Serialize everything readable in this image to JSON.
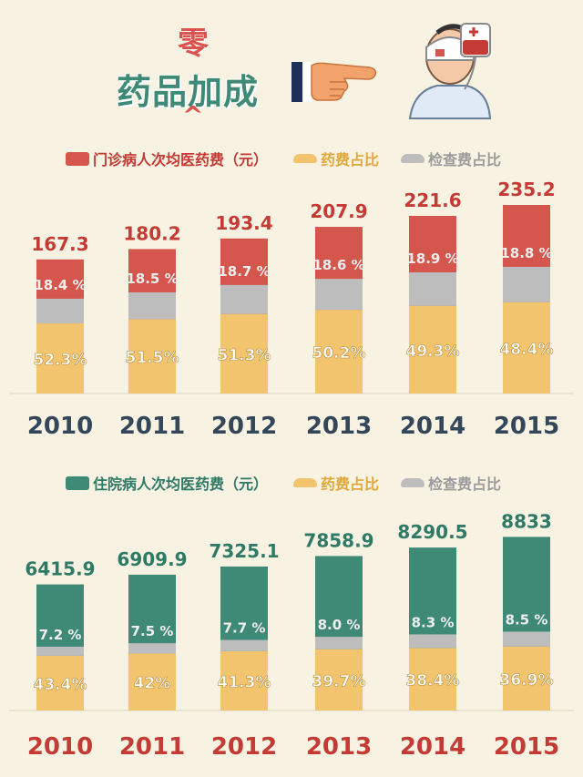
{
  "header": {
    "title": "药品加成",
    "zero_char": "零",
    "caret": "^",
    "icons": [
      "pointing-hand-icon",
      "bandaged-patient-icon"
    ]
  },
  "colors": {
    "outpatient_total": "#d4564d",
    "inpatient_total": "#3f8a76",
    "drug": "#f2c46d",
    "exam": "#bdbdbd",
    "year_dark": "#34475a",
    "year_red": "#c43b35",
    "value_red": "#c43b35",
    "value_green": "#2f7a66",
    "pct_light": "#ffffff"
  },
  "legend_top": {
    "total": "门诊病人次均医药费（元）",
    "drug": "药费占比",
    "exam": "检查费占比"
  },
  "legend_bottom": {
    "total": "住院病人次均医药费（元）",
    "drug": "药费占比",
    "exam": "检查费占比"
  },
  "chart_data": [
    {
      "type": "bar",
      "categories": [
        "2010",
        "2011",
        "2012",
        "2013",
        "2014",
        "2015"
      ],
      "series": [
        {
          "name": "门诊病人次均医药费（元）",
          "values": [
            167.3,
            180.2,
            193.4,
            207.9,
            221.6,
            235.2
          ]
        },
        {
          "name": "药费占比",
          "values": [
            52.3,
            51.5,
            51.3,
            50.2,
            49.3,
            48.4
          ]
        },
        {
          "name": "检查费占比",
          "values": [
            18.4,
            18.5,
            18.7,
            18.6,
            18.9,
            18.8
          ]
        }
      ],
      "value_labels": [
        "167.3",
        "180.2",
        "193.4",
        "207.9",
        "221.6",
        "235.2"
      ],
      "drug_labels": [
        "52.3%",
        "51.5%",
        "51.3%",
        "50.2%",
        "49.3%",
        "48.4%"
      ],
      "exam_labels": [
        "18.4 %",
        "18.5 %",
        "18.7 %",
        "18.6 %",
        "18.9 %",
        "18.8 %"
      ],
      "ylim": [
        0,
        250
      ],
      "grid": false
    },
    {
      "type": "bar",
      "categories": [
        "2010",
        "2011",
        "2012",
        "2013",
        "2014",
        "2015"
      ],
      "series": [
        {
          "name": "住院病人次均医药费（元）",
          "values": [
            6415.9,
            6909.9,
            7325.1,
            7858.9,
            8290.5,
            8833
          ]
        },
        {
          "name": "药费占比",
          "values": [
            43.4,
            42,
            41.3,
            39.7,
            38.4,
            36.9
          ]
        },
        {
          "name": "检查费占比",
          "values": [
            7.2,
            7.5,
            7.7,
            8.0,
            8.3,
            8.5
          ]
        }
      ],
      "value_labels": [
        "6415.9",
        "6909.9",
        "7325.1",
        "7858.9",
        "8290.5",
        "8833"
      ],
      "drug_labels": [
        "43.4%",
        "42%",
        "41.3%",
        "39.7%",
        "38.4%",
        "36.9%"
      ],
      "exam_labels": [
        "7.2 %",
        "7.5 %",
        "7.7 %",
        "8.0 %",
        "8.3 %",
        "8.5 %"
      ],
      "ylim": [
        0,
        9500
      ],
      "grid": false
    }
  ]
}
